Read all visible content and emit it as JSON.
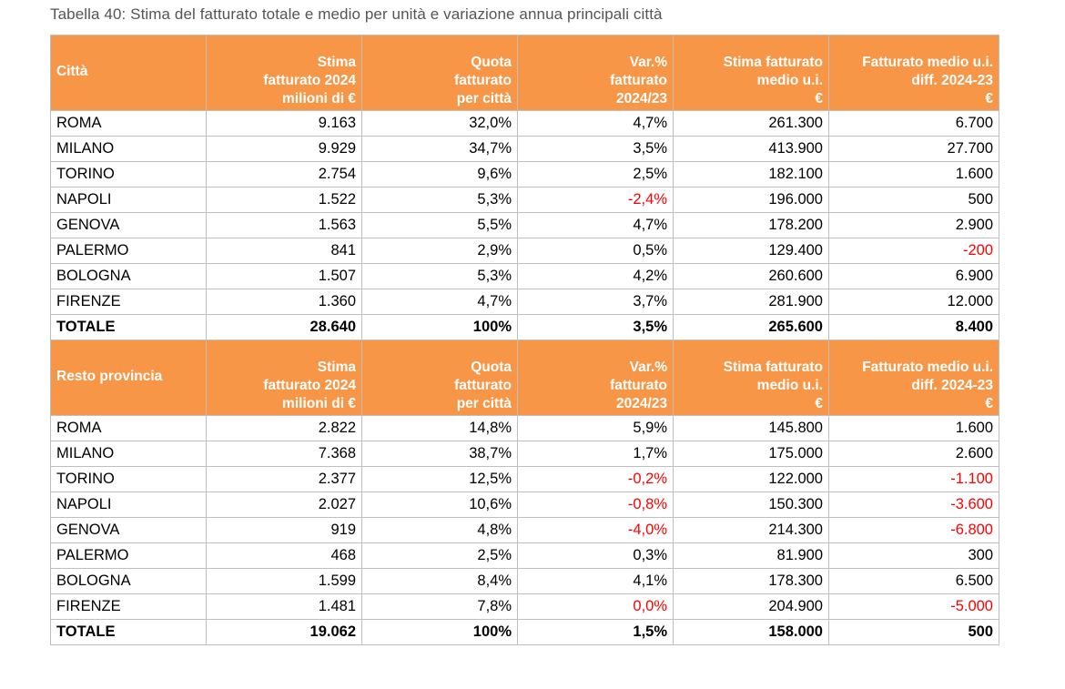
{
  "caption": "Tabella 40: Stima del fatturato totale e medio per unità e variazione annua principali città",
  "colors": {
    "header_bg": "#f79646",
    "header_text": "#ffffff",
    "negative": "#ff0000",
    "border": "#bfbfbf"
  },
  "sections": [
    {
      "header": [
        [
          "Città"
        ],
        [
          "Stima",
          "fatturato 2024",
          "milioni di €"
        ],
        [
          "Quota",
          "fatturato",
          "per città"
        ],
        [
          "Var.%",
          "fatturato",
          "2024/23"
        ],
        [
          "Stima fatturato",
          "medio u.i.",
          "€"
        ],
        [
          "Fatturato medio u.i.",
          "diff. 2024-23",
          "€"
        ]
      ],
      "rows": [
        [
          "ROMA",
          "9.163",
          "32,0%",
          "4,7%",
          "261.300",
          "6.700"
        ],
        [
          "MILANO",
          "9.929",
          "34,7%",
          "3,5%",
          "413.900",
          "27.700"
        ],
        [
          "TORINO",
          "2.754",
          "9,6%",
          "2,5%",
          "182.100",
          "1.600"
        ],
        [
          "NAPOLI",
          "1.522",
          "5,3%",
          "-2,4%",
          "196.000",
          "500"
        ],
        [
          "GENOVA",
          "1.563",
          "5,5%",
          "4,7%",
          "178.200",
          "2.900"
        ],
        [
          "PALERMO",
          "841",
          "2,9%",
          "0,5%",
          "129.400",
          "-200"
        ],
        [
          "BOLOGNA",
          "1.507",
          "5,3%",
          "4,2%",
          "260.600",
          "6.900"
        ],
        [
          "FIRENZE",
          "1.360",
          "4,7%",
          "3,7%",
          "281.900",
          "12.000"
        ],
        [
          "TOTALE",
          "28.640",
          "100%",
          "3,5%",
          "265.600",
          "8.400"
        ]
      ],
      "negative_cells": [
        [
          3,
          3
        ],
        [
          5,
          5
        ]
      ]
    },
    {
      "header": [
        [
          "Resto provincia"
        ],
        [
          "Stima",
          "fatturato 2024",
          "milioni di €"
        ],
        [
          "Quota",
          "fatturato",
          "per città"
        ],
        [
          "Var.%",
          "fatturato",
          "2024/23"
        ],
        [
          "Stima fatturato",
          "medio u.i.",
          "€"
        ],
        [
          "Fatturato medio u.i.",
          "diff. 2024-23",
          "€"
        ]
      ],
      "rows": [
        [
          "ROMA",
          "2.822",
          "14,8%",
          "5,9%",
          "145.800",
          "1.600"
        ],
        [
          "MILANO",
          "7.368",
          "38,7%",
          "1,7%",
          "175.000",
          "2.600"
        ],
        [
          "TORINO",
          "2.377",
          "12,5%",
          "-0,2%",
          "122.000",
          "-1.100"
        ],
        [
          "NAPOLI",
          "2.027",
          "10,6%",
          "-0,8%",
          "150.300",
          "-3.600"
        ],
        [
          "GENOVA",
          "919",
          "4,8%",
          "-4,0%",
          "214.300",
          "-6.800"
        ],
        [
          "PALERMO",
          "468",
          "2,5%",
          "0,3%",
          "81.900",
          "300"
        ],
        [
          "BOLOGNA",
          "1.599",
          "8,4%",
          "4,1%",
          "178.300",
          "6.500"
        ],
        [
          "FIRENZE",
          "1.481",
          "7,8%",
          "0,0%",
          "204.900",
          "-5.000"
        ],
        [
          "TOTALE",
          "19.062",
          "100%",
          "1,5%",
          "158.000",
          "500"
        ]
      ],
      "negative_cells": [
        [
          2,
          3
        ],
        [
          2,
          5
        ],
        [
          3,
          3
        ],
        [
          3,
          5
        ],
        [
          4,
          3
        ],
        [
          4,
          5
        ],
        [
          7,
          3
        ],
        [
          7,
          5
        ]
      ]
    }
  ]
}
